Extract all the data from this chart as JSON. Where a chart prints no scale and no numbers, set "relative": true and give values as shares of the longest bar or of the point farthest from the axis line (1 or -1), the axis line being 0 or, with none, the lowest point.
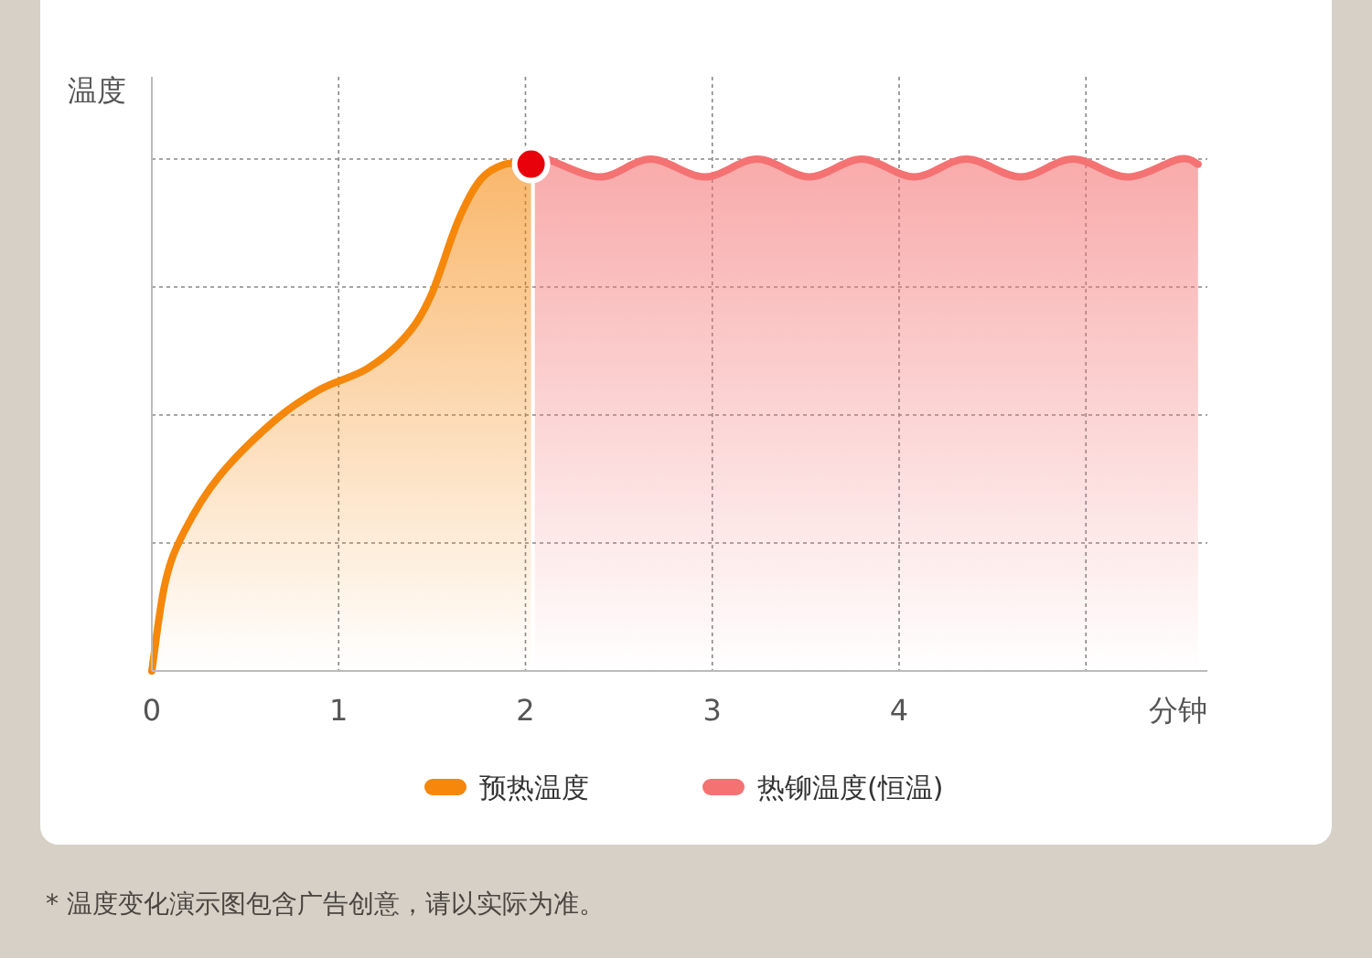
{
  "chart_data": {
    "type": "area",
    "ylabel": "温度",
    "xlabel": "分钟",
    "relative": true,
    "xlim": [
      0,
      5.65
    ],
    "xticks": [
      0,
      1,
      2,
      3,
      4,
      {
        "value": 5,
        "label": null
      }
    ],
    "grid": true,
    "legend": "bottom",
    "annotations": [
      "* 温度变化演示图包含广告创意，请以实际为准。"
    ],
    "series": [
      {
        "name": "预热温度",
        "color": "#f5870a",
        "x": [
          0,
          0.07,
          0.17,
          0.36,
          0.66,
          0.9,
          1.15,
          1.35,
          1.49,
          1.64,
          1.76,
          1.89,
          2.03
        ],
        "values": [
          0,
          0.17,
          0.27,
          0.38,
          0.49,
          0.55,
          0.59,
          0.65,
          0.73,
          0.88,
          0.96,
          0.99,
          0.99
        ]
      },
      {
        "name": "热铆温度(恒温)",
        "color": "#f47272",
        "x": [
          2.05,
          2.11,
          2.4,
          2.67,
          2.96,
          3.24,
          3.52,
          3.8,
          4.08,
          4.36,
          4.65,
          4.93,
          5.22,
          5.5,
          5.6
        ],
        "values": [
          0.99,
          1,
          0.965,
          1,
          0.965,
          1,
          0.965,
          1,
          0.965,
          1,
          0.965,
          1,
          0.965,
          1,
          0.99
        ]
      },
      {
        "type": "scatter",
        "marker": "circle",
        "color": "#e8000b",
        "x": [
          2.03
        ],
        "values": [
          0.99
        ]
      }
    ]
  }
}
